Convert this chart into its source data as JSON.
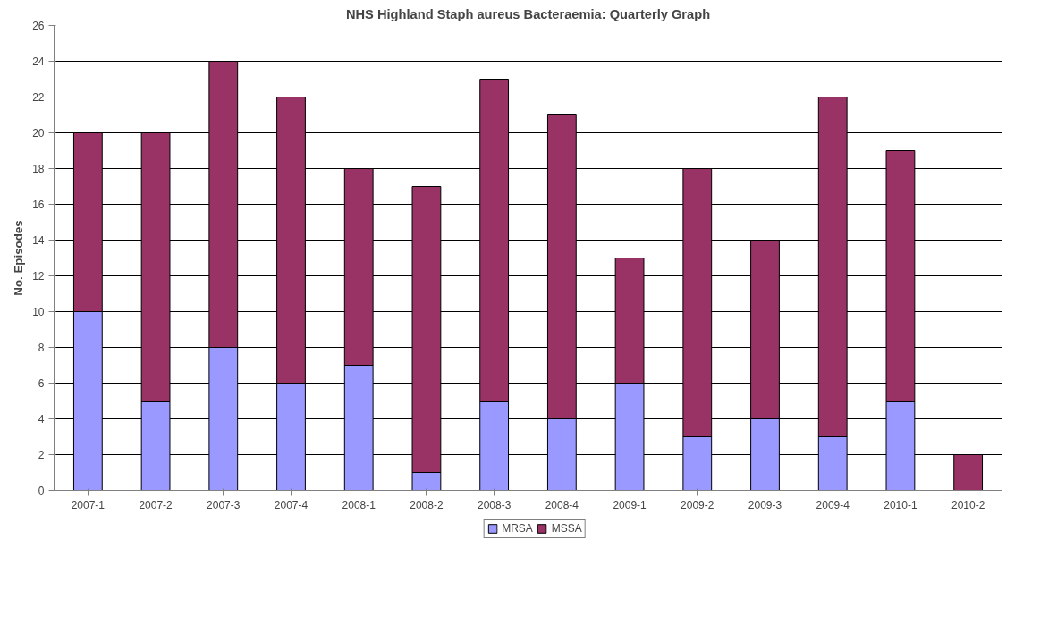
{
  "chart_data": {
    "type": "bar",
    "title": "NHS Highland Staph aureus Bacteraemia: Quarterly Graph",
    "ylabel": "No. Episodes",
    "categories": [
      "2007-1",
      "2007-2",
      "2007-3",
      "2007-4",
      "2008-1",
      "2008-2",
      "2008-3",
      "2008-4",
      "2009-1",
      "2009-2",
      "2009-3",
      "2009-4",
      "2010-1",
      "2010-2"
    ],
    "series": [
      {
        "name": "MRSA",
        "color": "#9999ff",
        "values": [
          10,
          5,
          8,
          6,
          7,
          1,
          5,
          4,
          6,
          3,
          4,
          3,
          5,
          0
        ]
      },
      {
        "name": "MSSA",
        "color": "#993366",
        "values": [
          10,
          15,
          16,
          16,
          11,
          16,
          18,
          17,
          7,
          15,
          10,
          19,
          14,
          2
        ]
      }
    ],
    "stacked": true,
    "ylim": [
      0,
      26
    ],
    "yticks": [
      0,
      2,
      4,
      6,
      8,
      10,
      12,
      14,
      16,
      18,
      20,
      22,
      24,
      26
    ],
    "grid": "y",
    "legend": "bottom"
  }
}
